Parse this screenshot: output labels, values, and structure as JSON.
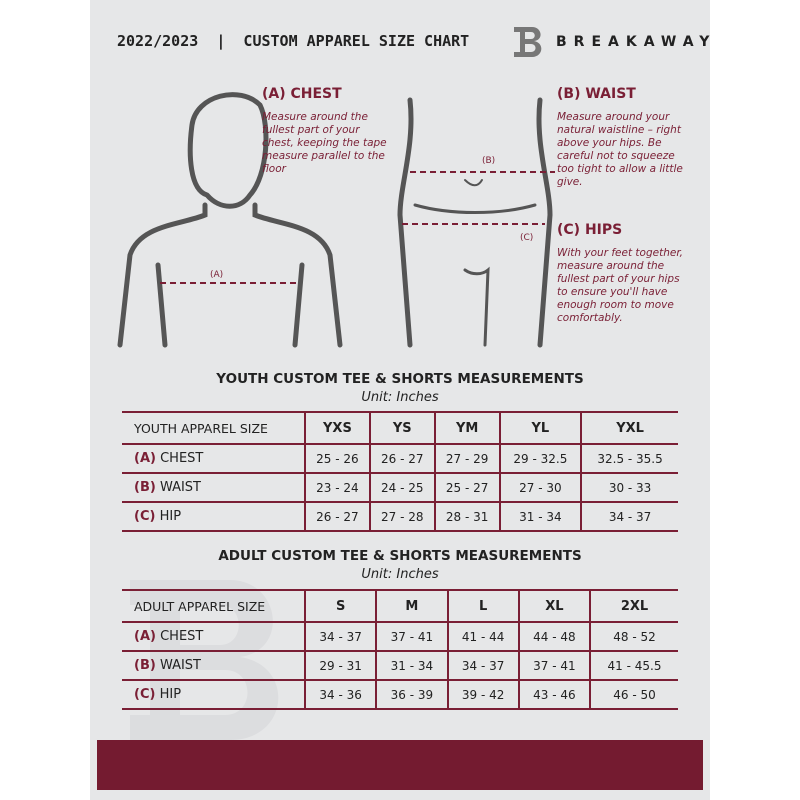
{
  "header": {
    "title": "2022/2023  |  CUSTOM APPAREL SIZE CHART",
    "brand": "BREAKAWAY",
    "logo_letter": "B"
  },
  "chest": {
    "heading": "(A) CHEST",
    "desc": "Measure around the fullest part of your chest, keeping the tape measure parallel to the floor",
    "marker": "(A)"
  },
  "waist": {
    "heading": "(B) WAIST",
    "desc": "Measure around your natural waistline – right above your hips. Be careful not to squeeze too tight to allow a little give.",
    "marker": "(B)"
  },
  "hips": {
    "heading": "(C) HIPS",
    "desc": "With your feet together, measure around the fullest part of your hips to ensure you'll have enough room to move comfortably.",
    "marker": "(C)"
  },
  "youth": {
    "title": "YOUTH CUSTOM TEE & SHORTS MEASUREMENTS",
    "unit": "Unit: Inches",
    "size_label": "YOUTH APPAREL SIZE",
    "sizes": [
      "YXS",
      "YS",
      "YM",
      "YL",
      "YXL"
    ],
    "rows": [
      {
        "letter": "(A)",
        "name": "CHEST",
        "values": [
          "25 - 26",
          "26 - 27",
          "27 - 29",
          "29 - 32.5",
          "32.5 - 35.5"
        ]
      },
      {
        "letter": "(B)",
        "name": "WAIST",
        "values": [
          "23 - 24",
          "24 - 25",
          "25 - 27",
          "27 - 30",
          "30 - 33"
        ]
      },
      {
        "letter": "(C)",
        "name": "HIP",
        "values": [
          "26 - 27",
          "27 - 28",
          "28 - 31",
          "31 - 34",
          "34 - 37"
        ]
      }
    ]
  },
  "adult": {
    "title": "ADULT CUSTOM TEE & SHORTS MEASUREMENTS",
    "unit": "Unit: Inches",
    "size_label": "ADULT APPAREL SIZE",
    "sizes": [
      "S",
      "M",
      "L",
      "XL",
      "2XL"
    ],
    "rows": [
      {
        "letter": "(A)",
        "name": "CHEST",
        "values": [
          "34 - 37",
          "37 - 41",
          "41 - 44",
          "44 - 48",
          "48 - 52"
        ]
      },
      {
        "letter": "(B)",
        "name": "WAIST",
        "values": [
          "29 - 31",
          "31 - 34",
          "34 - 37",
          "37 - 41",
          "41 - 45.5"
        ]
      },
      {
        "letter": "(C)",
        "name": "HIP",
        "values": [
          "34 - 36",
          "36 - 39",
          "39 - 42",
          "43 - 46",
          "46 - 50"
        ]
      }
    ]
  },
  "colors": {
    "accent": "#741b30",
    "panel": "#e6e7e8"
  }
}
